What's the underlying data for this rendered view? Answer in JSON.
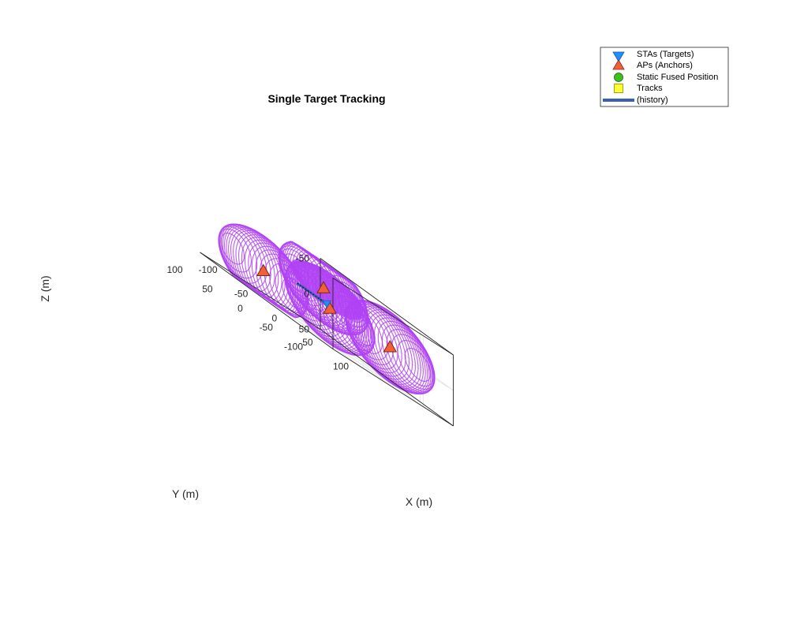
{
  "chart_data": {
    "type": "scatter",
    "title": "Single Target Tracking",
    "xlabel": "X (m)",
    "ylabel": "Y (m)",
    "zlabel": "Z (m)",
    "xlim": [
      -100,
      100
    ],
    "ylim": [
      -100,
      100
    ],
    "zlim": [
      -50,
      50
    ],
    "z_direction": "reverse",
    "grid": true,
    "x_ticks": [
      "-100",
      "-50",
      "0",
      "50",
      "100"
    ],
    "y_ticks": [
      "-100",
      "-50",
      "0",
      "50",
      "100"
    ],
    "z_ticks": [
      "-50",
      "0",
      "50"
    ],
    "legend": {
      "placement": "outside-top-right",
      "entries": [
        {
          "label": "STAs (Targets)",
          "marker": "triangle-down",
          "color": "#1f8fff"
        },
        {
          "label": "APs (Anchors)",
          "marker": "triangle-up",
          "color": "#f2603a"
        },
        {
          "label": "Static Fused Position",
          "marker": "circle",
          "color": "#3cc21a"
        },
        {
          "label": "Tracks",
          "marker": "square",
          "color": "#ffff33"
        },
        {
          "label": "(history)",
          "marker": "line",
          "color": "#3a5fb8"
        }
      ]
    },
    "anchors": [
      {
        "x": -50,
        "y": -50,
        "z": -15
      },
      {
        "x": -50,
        "y": 50,
        "z": 15
      },
      {
        "x": 50,
        "y": -50,
        "z": 0
      },
      {
        "x": 50,
        "y": 50,
        "z": 0
      }
    ],
    "target": {
      "x": 2,
      "y": 2,
      "z": 0
    },
    "history": [
      {
        "x": -28,
        "y": 18,
        "z": 0
      },
      {
        "x": 2,
        "y": 2,
        "z": 0
      }
    ],
    "range_spheres": {
      "color": "#b042f5",
      "radius_m": 50
    }
  }
}
